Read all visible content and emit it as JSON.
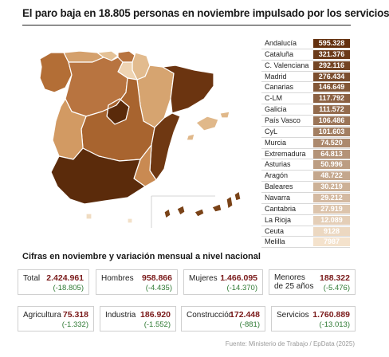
{
  "title": "El paro baja en 18.805 personas en noviembre impulsado por los servicios",
  "chart_data": {
    "type": "table",
    "title": "El paro baja en 18.805 personas en noviembre impulsado por los servicios",
    "categories": [
      "Andalucía",
      "Cataluña",
      "C. Valenciana",
      "Madrid",
      "Canarias",
      "C-LM",
      "Galicia",
      "País Vasco",
      "CyL",
      "Murcia",
      "Extremadura",
      "Asturias",
      "Aragón",
      "Baleares",
      "Navarra",
      "Cantabria",
      "La Rioja",
      "Ceuta",
      "Melilla"
    ],
    "values": [
      595328,
      321376,
      292116,
      276434,
      146649,
      117792,
      111572,
      106486,
      101603,
      74520,
      64813,
      50996,
      48722,
      30219,
      29212,
      27919,
      12089,
      9128,
      7987
    ],
    "rows": [
      {
        "name": "Andalucía",
        "value": "595.328"
      },
      {
        "name": "Cataluña",
        "value": "321.376"
      },
      {
        "name": "C. Valenciana",
        "value": "292.116"
      },
      {
        "name": "Madrid",
        "value": "276.434"
      },
      {
        "name": "Canarias",
        "value": "146.649"
      },
      {
        "name": "C-LM",
        "value": "117.792"
      },
      {
        "name": "Galicia",
        "value": "111.572"
      },
      {
        "name": "País Vasco",
        "value": "106.486"
      },
      {
        "name": "CyL",
        "value": "101.603"
      },
      {
        "name": "Murcia",
        "value": "74.520"
      },
      {
        "name": "Extremadura",
        "value": "64.813"
      },
      {
        "name": "Asturias",
        "value": "50.996"
      },
      {
        "name": "Aragón",
        "value": "48.722"
      },
      {
        "name": "Baleares",
        "value": "30.219"
      },
      {
        "name": "Navarra",
        "value": "29.212"
      },
      {
        "name": "Cantabria",
        "value": "27.919"
      },
      {
        "name": "La Rioja",
        "value": "12.089"
      },
      {
        "name": "Ceuta",
        "value": "9128"
      },
      {
        "name": "Melilla",
        "value": "7987"
      }
    ]
  },
  "map_colors": {
    "andalucia": "#5b2b0b",
    "cataluna": "#6b3410",
    "valenciana": "#6f3812",
    "madrid": "#5a2a0a",
    "canarias": "#7a4318",
    "clm": "#a8642f",
    "galicia": "#b36e36",
    "pais_vasco": "#b87440",
    "cyl": "#b87440",
    "murcia": "#c98a52",
    "extremadura": "#d29a63",
    "asturias": "#d4a06c",
    "aragon": "#d6a470",
    "baleares": "#e0b88a",
    "navarra": "#e2bb8e",
    "cantabria": "#e4c196",
    "la_rioja": "#eed3b2",
    "ceuta": "#f0dcc2",
    "melilla": "#f2e0c8"
  },
  "subtitle": "Cifras en noviembre y variación mensual a nivel nacional",
  "stats_row1": [
    {
      "label": "Total",
      "value": "2.424.961",
      "delta": "(-18.805)"
    },
    {
      "label": "Hombres",
      "value": "958.866",
      "delta": "(-4.435)"
    },
    {
      "label": "Mujeres",
      "value": "1.466.095",
      "delta": "(-14.370)"
    },
    {
      "label": "Menores",
      "label2": "de 25 años",
      "value": "188.322",
      "delta": "(-5.476)"
    }
  ],
  "stats_row2": [
    {
      "label": "Agricultura",
      "value": "75.318",
      "delta": "(-1.332)"
    },
    {
      "label": "Industria",
      "value": "186.920",
      "delta": "(-1.552)"
    },
    {
      "label": "Construcción",
      "value": "172.448",
      "delta": "(-881)"
    },
    {
      "label": "Servicios",
      "value": "1.760.889",
      "delta": "(-13.013)"
    }
  ],
  "source": "Fuente: Ministerio de Trabajo / EpData (2025)"
}
